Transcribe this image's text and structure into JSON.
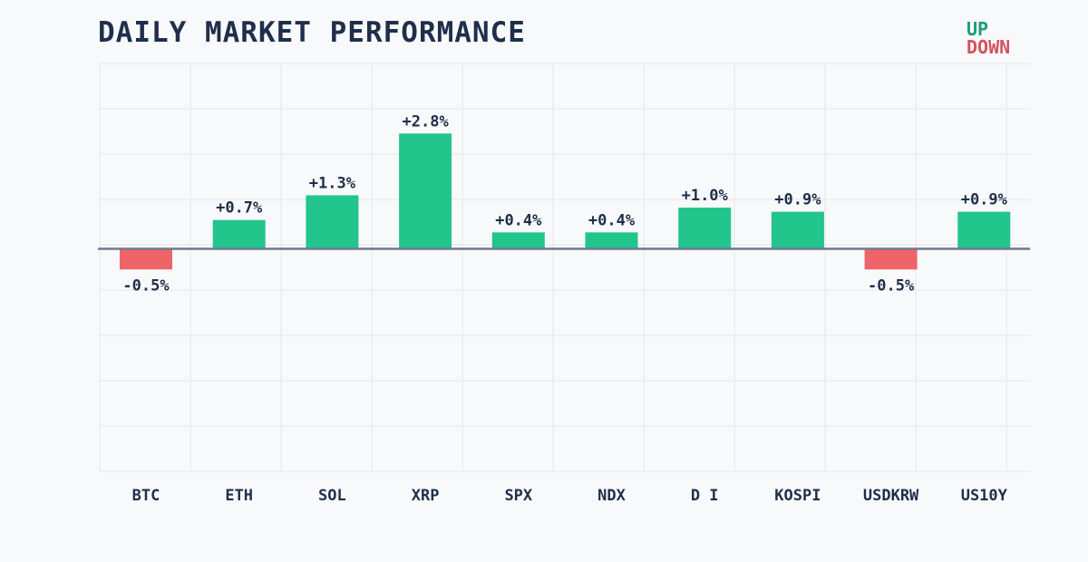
{
  "chart_data": {
    "type": "bar",
    "title": "DAILY MARKET PERFORMANCE",
    "categories": [
      "BTC",
      "ETH",
      "SOL",
      "XRP",
      "SPX",
      "NDX",
      "D I",
      "KOSPI",
      "USDKRW",
      "US10Y"
    ],
    "values": [
      -0.5,
      0.7,
      1.3,
      2.8,
      0.4,
      0.4,
      1.0,
      0.9,
      -0.5,
      0.9
    ],
    "value_labels": [
      "-0.5%",
      "+0.7%",
      "+1.3%",
      "+2.8%",
      "+0.4%",
      "+0.4%",
      "+1.0%",
      "+0.9%",
      "-0.5%",
      "+0.9%"
    ],
    "ylim": [
      -5.4,
      4.5
    ],
    "xlabel": "",
    "ylabel": "",
    "grid": true,
    "legend": {
      "position": "top-right",
      "entries": [
        {
          "name": "UP",
          "color": "#1a9e72"
        },
        {
          "name": "DOWN",
          "color": "#d4535c"
        }
      ]
    },
    "colors": {
      "up": "#22c58b",
      "down": "#ef6468",
      "zero_line": "#6e7a8a",
      "grid": "#e3e6ea",
      "text": "#1f2f4a",
      "background": "#f8f9fb"
    }
  }
}
